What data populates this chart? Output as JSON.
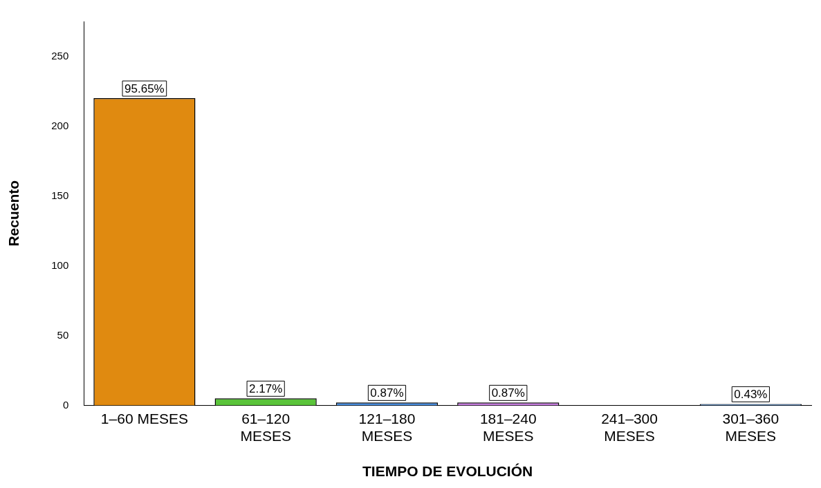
{
  "chart_data": {
    "type": "bar",
    "xlabel": "TIEMPO DE EVOLUCIÓN",
    "ylabel": "Recuento",
    "categories": [
      "1–60 MESES",
      "61–120 MESES",
      "121–180 MESES",
      "181–240 MESES",
      "241–300 MESES",
      "301–360 MESES"
    ],
    "values": [
      220,
      5,
      2,
      2,
      0,
      1
    ],
    "colors": [
      "#e08a10",
      "#5ac43a",
      "#4a8ee0",
      "#c77ee0",
      "#4a8ee0",
      "#4a8ee0"
    ],
    "annotations": [
      {
        "text": "95.65%",
        "x": "1–60 MESES",
        "y": 220
      },
      {
        "text": "2.17%",
        "x": "61–120 MESES",
        "y": 5
      },
      {
        "text": "0.87%",
        "x": "121–180 MESES",
        "y": 2
      },
      {
        "text": "0.87%",
        "x": "181–240 MESES",
        "y": 2
      },
      {
        "text": "0.43%",
        "x": "301–360 MESES",
        "y": 1
      }
    ],
    "ylim": [
      0,
      275
    ],
    "yticks": [
      0,
      50,
      100,
      150,
      200,
      250
    ],
    "grid": false,
    "legend": false
  }
}
